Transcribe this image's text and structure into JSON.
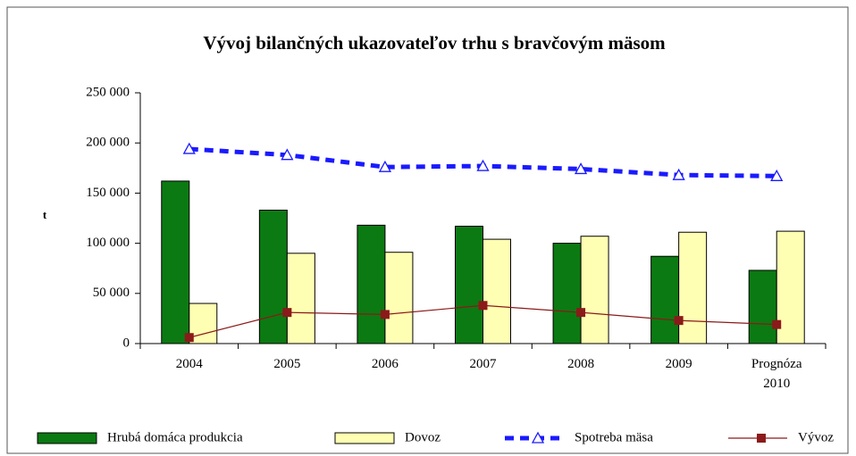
{
  "chart_data": {
    "type": "bar_line",
    "title": "Vývoj bilančných ukazovateľov trhu s bravčovým mäsom",
    "y_label": "t",
    "categories": [
      "2004",
      "2005",
      "2006",
      "2007",
      "2008",
      "2009",
      "Prognóza 2010"
    ],
    "series": [
      {
        "name": "Hrubá domáca produkcia",
        "kind": "bar",
        "color": "#0b7a12",
        "values": [
          162000,
          133000,
          118000,
          117000,
          100000,
          87000,
          73000
        ]
      },
      {
        "name": "Dovoz",
        "kind": "bar",
        "color": "#ffffb3",
        "values": [
          40000,
          90000,
          91000,
          104000,
          107000,
          111000,
          112000
        ]
      },
      {
        "name": "Spotreba mäsa",
        "kind": "line",
        "marker": "triangle",
        "dashed": true,
        "color": "#1a1aff",
        "values": [
          194000,
          188000,
          176000,
          177000,
          174000,
          168000,
          167000
        ]
      },
      {
        "name": "Vývoz",
        "kind": "line",
        "marker": "square",
        "dashed": false,
        "color": "#8b1a1a",
        "values": [
          6000,
          31000,
          29000,
          38000,
          31000,
          23000,
          19000
        ]
      }
    ],
    "ylim": [
      0,
      250000
    ],
    "yticks": [
      {
        "value": 0,
        "label": "0"
      },
      {
        "value": 50000,
        "label": "50 000"
      },
      {
        "value": 100000,
        "label": "100 000"
      },
      {
        "value": 150000,
        "label": "150 000"
      },
      {
        "value": 200000,
        "label": "200 000"
      },
      {
        "value": 250000,
        "label": "250 000"
      }
    ],
    "legend": "bottom"
  }
}
